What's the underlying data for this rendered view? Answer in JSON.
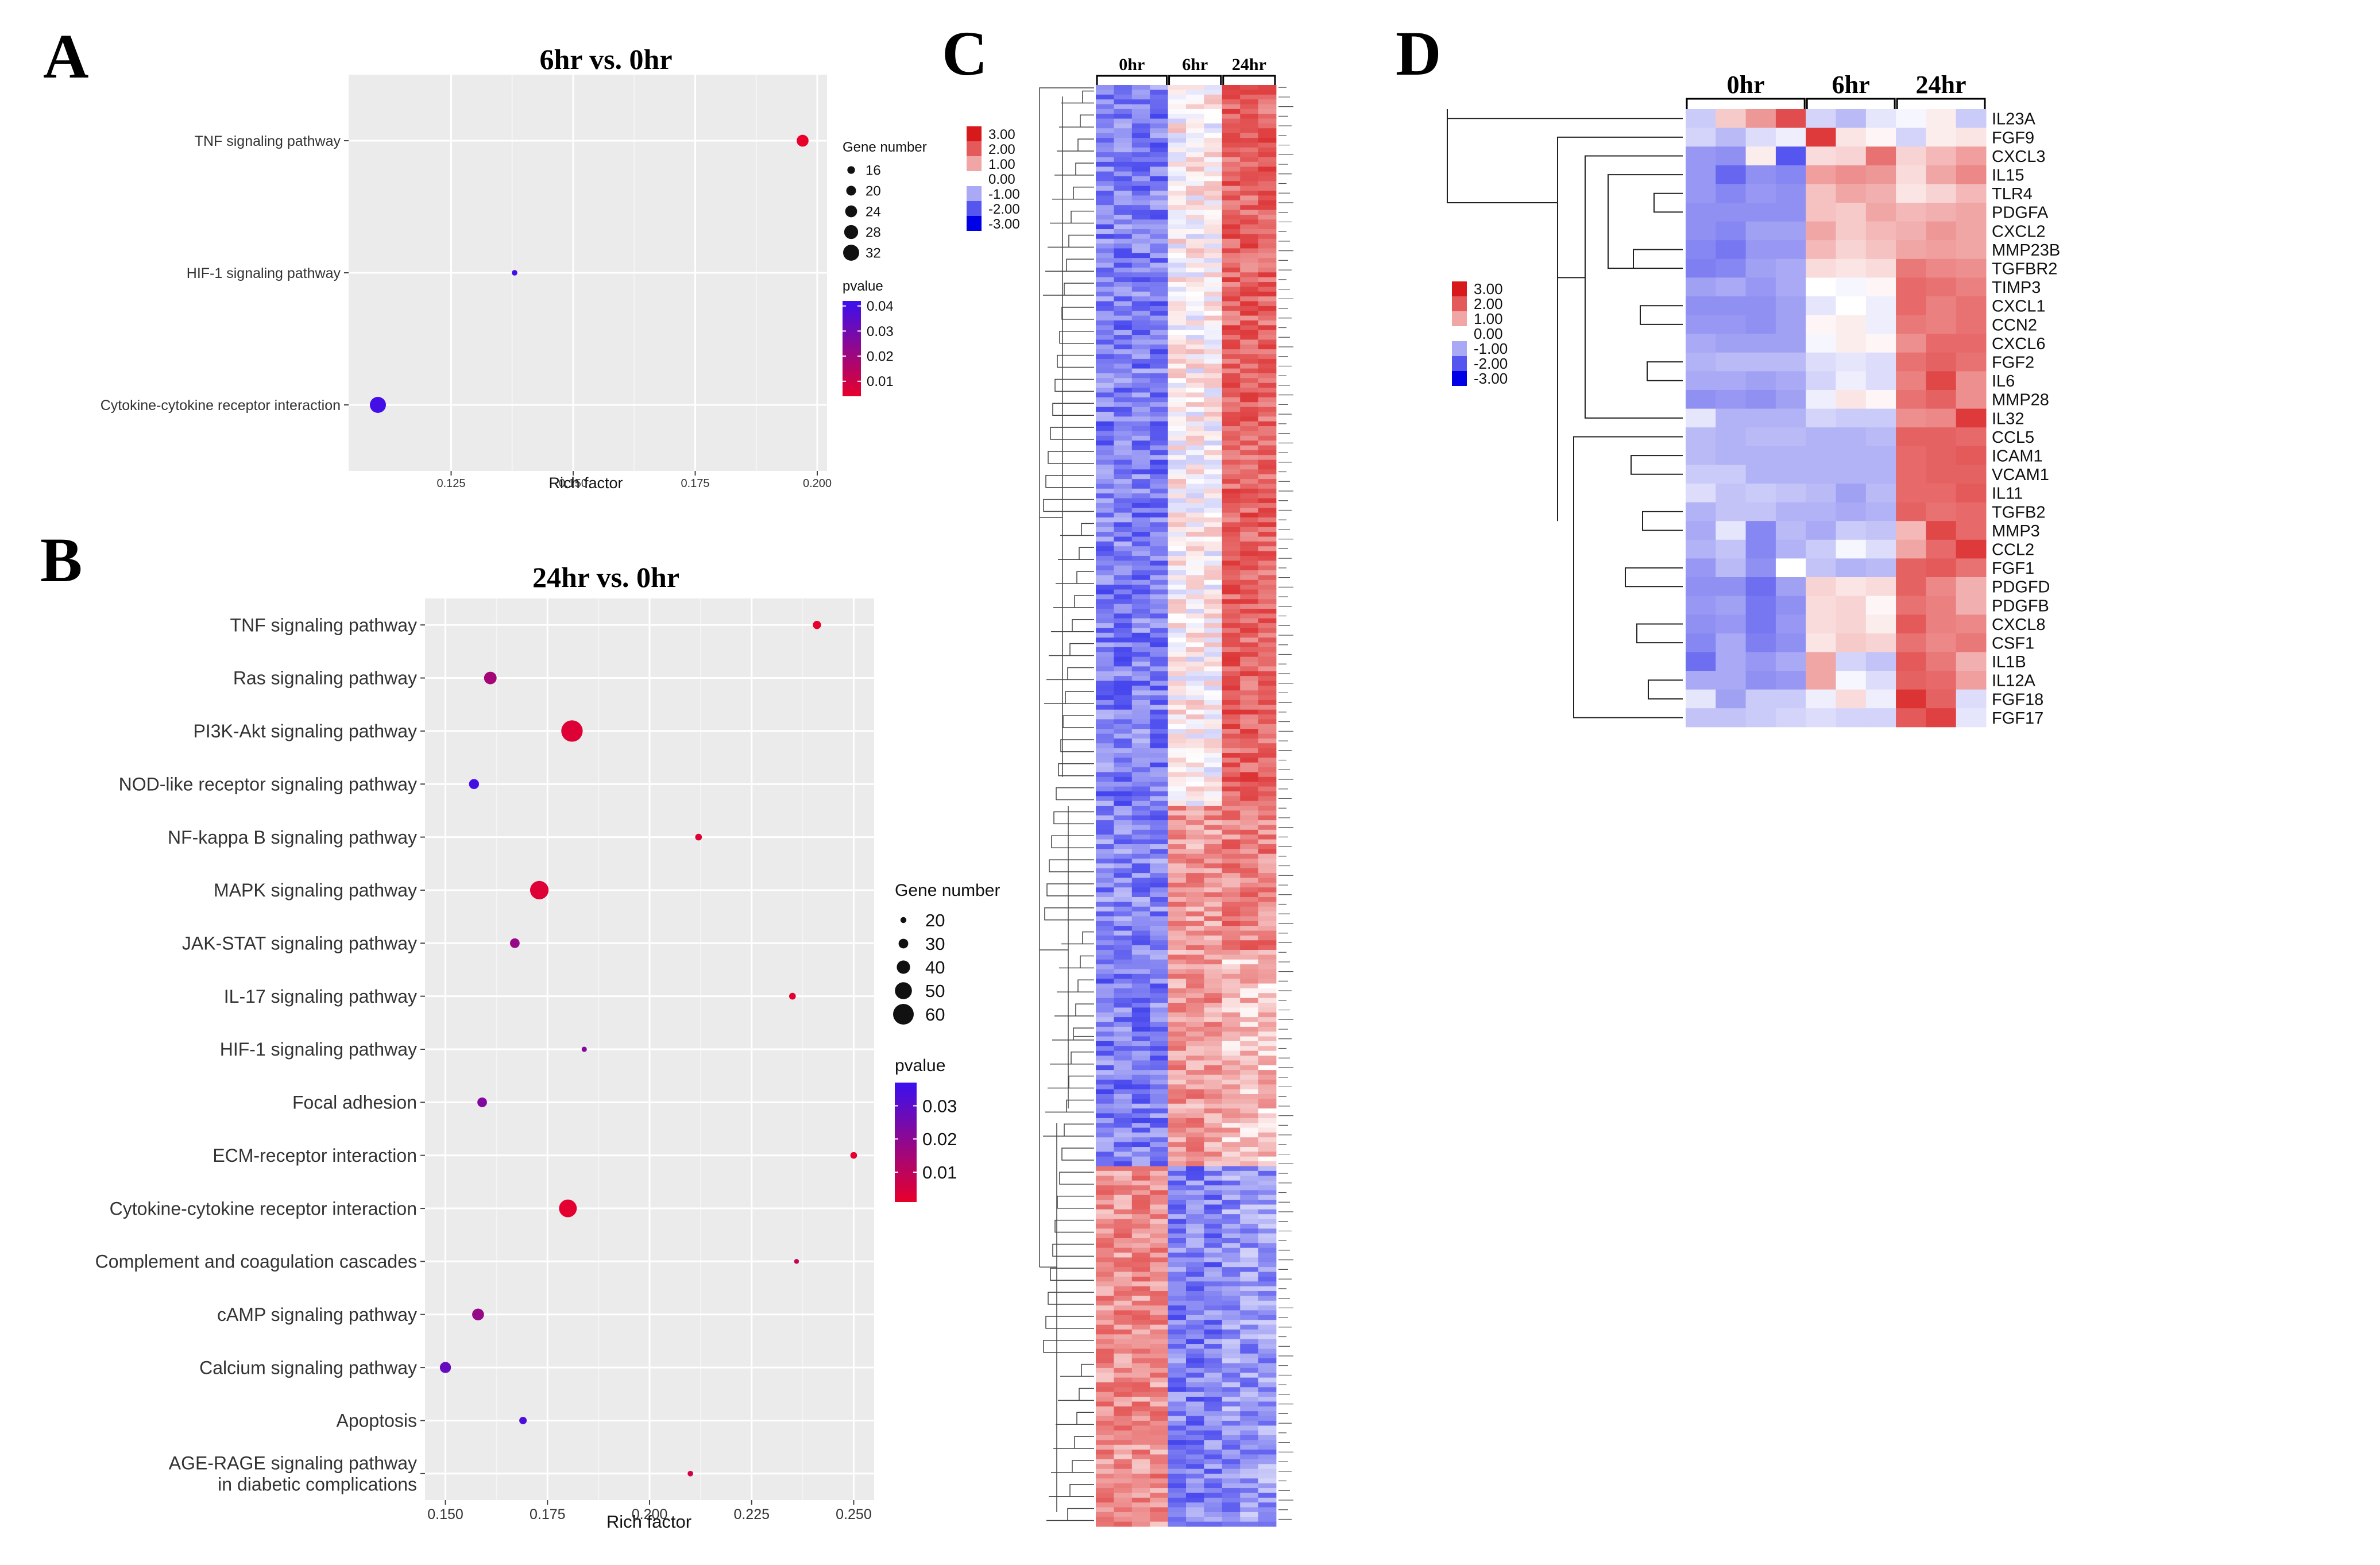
{
  "panels": {
    "A": {
      "letter": "A",
      "title": "6hr vs. 0hr",
      "xlabel": "Rich factor",
      "size_legend_title": "Gene number",
      "color_legend_title": "pvalue"
    },
    "B": {
      "letter": "B",
      "title": "24hr vs. 0hr",
      "xlabel": "Rich factor",
      "size_legend_title": "Gene number",
      "color_legend_title": "pvalue"
    },
    "C": {
      "letter": "C"
    },
    "D": {
      "letter": "D"
    }
  },
  "chart_data": [
    {
      "panel": "A",
      "type": "scatter",
      "title": "6hr vs. 0hr",
      "xlabel": "Rich factor",
      "ylabel": "",
      "xlim": [
        0.104,
        0.202
      ],
      "xticks": [
        0.125,
        0.15,
        0.175,
        0.2
      ],
      "xtick_labels": [
        "0.125",
        "0.150",
        "0.175",
        "0.200"
      ],
      "grid": true,
      "legend_position": "right",
      "categories": [
        "TNF signaling pathway",
        "HIF-1 signaling pathway",
        "Cytokine-cytokine receptor interaction"
      ],
      "points": [
        {
          "pathway": "TNF signaling pathway",
          "rich_factor": 0.197,
          "gene_number": 24,
          "pvalue": 0.004
        },
        {
          "pathway": "HIF-1 signaling pathway",
          "rich_factor": 0.138,
          "gene_number": 12,
          "pvalue": 0.04
        },
        {
          "pathway": "Cytokine-cytokine receptor interaction",
          "rich_factor": 0.11,
          "gene_number": 32,
          "pvalue": 0.04
        }
      ],
      "size_legend": {
        "title": "Gene number",
        "values": [
          16,
          20,
          24,
          28,
          32
        ]
      },
      "color_legend": {
        "title": "pvalue",
        "ticks": [
          0.04,
          0.03,
          0.02,
          0.01
        ],
        "tick_labels": [
          "0.04",
          "0.03",
          "0.02",
          "0.01"
        ],
        "range": [
          0.004,
          0.042
        ],
        "low_color": "#e8002a",
        "high_color": "#3a10f0"
      }
    },
    {
      "panel": "B",
      "type": "scatter",
      "title": "24hr vs. 0hr",
      "xlabel": "Rich factor",
      "ylabel": "",
      "xlim": [
        0.145,
        0.255
      ],
      "xticks": [
        0.15,
        0.175,
        0.2,
        0.225,
        0.25
      ],
      "xtick_labels": [
        "0.150",
        "0.175",
        "0.200",
        "0.225",
        "0.250"
      ],
      "grid": true,
      "legend_position": "right",
      "categories": [
        "TNF signaling pathway",
        "Ras signaling pathway",
        "PI3K-Akt signaling pathway",
        "NOD-like receptor signaling pathway",
        "NF-kappa B signaling pathway",
        "MAPK signaling pathway",
        "JAK-STAT signaling pathway",
        "IL-17 signaling pathway",
        "HIF-1 signaling pathway",
        "Focal adhesion",
        "ECM-receptor interaction",
        "Cytokine-cytokine receptor interaction",
        "Complement and coagulation cascades",
        "cAMP signaling pathway",
        "Calcium signaling pathway",
        "Apoptosis",
        "AGE-RAGE signaling pathway\nin diabetic complications"
      ],
      "points": [
        {
          "pathway": "TNF signaling pathway",
          "rich_factor": 0.241,
          "gene_number": 26,
          "pvalue": 0.001
        },
        {
          "pathway": "Ras signaling pathway",
          "rich_factor": 0.161,
          "gene_number": 38,
          "pvalue": 0.015
        },
        {
          "pathway": "PI3K-Akt signaling pathway",
          "rich_factor": 0.181,
          "gene_number": 62,
          "pvalue": 0.003
        },
        {
          "pathway": "NOD-like receptor signaling pathway",
          "rich_factor": 0.157,
          "gene_number": 31,
          "pvalue": 0.035
        },
        {
          "pathway": "NF-kappa B signaling pathway",
          "rich_factor": 0.212,
          "gene_number": 22,
          "pvalue": 0.003
        },
        {
          "pathway": "MAPK signaling pathway",
          "rich_factor": 0.173,
          "gene_number": 54,
          "pvalue": 0.003
        },
        {
          "pathway": "JAK-STAT signaling pathway",
          "rich_factor": 0.167,
          "gene_number": 30,
          "pvalue": 0.018
        },
        {
          "pathway": "IL-17 signaling pathway",
          "rich_factor": 0.235,
          "gene_number": 22,
          "pvalue": 0.002
        },
        {
          "pathway": "HIF-1 signaling pathway",
          "rich_factor": 0.184,
          "gene_number": 18,
          "pvalue": 0.022
        },
        {
          "pathway": "Focal adhesion",
          "rich_factor": 0.159,
          "gene_number": 30,
          "pvalue": 0.022
        },
        {
          "pathway": "ECM-receptor interaction",
          "rich_factor": 0.25,
          "gene_number": 22,
          "pvalue": 0.002
        },
        {
          "pathway": "Cytokine-cytokine receptor interaction",
          "rich_factor": 0.18,
          "gene_number": 52,
          "pvalue": 0.002
        },
        {
          "pathway": "Complement and coagulation cascades",
          "rich_factor": 0.236,
          "gene_number": 17,
          "pvalue": 0.008
        },
        {
          "pathway": "cAMP signaling pathway",
          "rich_factor": 0.158,
          "gene_number": 36,
          "pvalue": 0.018
        },
        {
          "pathway": "Calcium signaling pathway",
          "rich_factor": 0.15,
          "gene_number": 34,
          "pvalue": 0.028
        },
        {
          "pathway": "Apoptosis",
          "rich_factor": 0.169,
          "gene_number": 24,
          "pvalue": 0.033
        },
        {
          "pathway": "AGE-RAGE signaling pathway\nin diabetic complications",
          "rich_factor": 0.21,
          "gene_number": 19,
          "pvalue": 0.006
        }
      ],
      "size_legend": {
        "title": "Gene number",
        "values": [
          20,
          30,
          40,
          50,
          60
        ]
      },
      "color_legend": {
        "title": "pvalue",
        "ticks": [
          0.03,
          0.02,
          0.01
        ],
        "tick_labels": [
          "0.03",
          "0.02",
          "0.01"
        ],
        "range": [
          0.001,
          0.037
        ],
        "low_color": "#e8002a",
        "high_color": "#3a10f0"
      }
    },
    {
      "panel": "C",
      "type": "heatmap",
      "groups": [
        {
          "label": "0hr",
          "columns": 4
        },
        {
          "label": "6hr",
          "columns": 3
        },
        {
          "label": "24hr",
          "columns": 3
        }
      ],
      "row_count": 300,
      "row_labels_legible": false,
      "row_blocks": [
        {
          "until_fraction": 0.5,
          "pattern": [
            -1.5,
            -1.5,
            -1.5,
            -1.5,
            0.1,
            0.1,
            0.1,
            1.9,
            1.9,
            1.9
          ]
        },
        {
          "until_fraction": 0.6,
          "pattern": [
            -1.4,
            -1.4,
            -1.4,
            -1.4,
            1.2,
            1.2,
            1.2,
            1.5,
            1.5,
            1.5
          ]
        },
        {
          "until_fraction": 0.75,
          "pattern": [
            -1.5,
            -1.5,
            -1.5,
            -1.5,
            1.2,
            1.2,
            1.2,
            0.7,
            0.7,
            0.7
          ]
        },
        {
          "until_fraction": 1.0,
          "pattern": [
            1.3,
            1.3,
            1.3,
            1.3,
            -1.5,
            -1.5,
            -1.5,
            -1.2,
            -1.2,
            -1.2
          ]
        }
      ],
      "color_scale": {
        "labels": [
          "3.00",
          "2.00",
          "1.00",
          "0.00",
          "-1.00",
          "-2.00",
          "-3.00"
        ],
        "colors": [
          "#d7191c",
          "#e45a5a",
          "#f1a6a6",
          "#ffffff",
          "#a9a9f5",
          "#5555ef",
          "#0000e6"
        ]
      }
    },
    {
      "panel": "D",
      "type": "heatmap",
      "groups": [
        {
          "label": "0hr",
          "columns": 4
        },
        {
          "label": "6hr",
          "columns": 3
        },
        {
          "label": "24hr",
          "columns": 3
        }
      ],
      "genes": [
        "IL23A",
        "FGF9",
        "CXCL3",
        "IL15",
        "TLR4",
        "PDGFA",
        "CXCL2",
        "MMP23B",
        "TGFBR2",
        "TIMP3",
        "CXCL1",
        "CCN2",
        "CXCL6",
        "FGF2",
        "IL6",
        "MMP28",
        "IL32",
        "CCL5",
        "ICAM1",
        "VCAM1",
        "IL11",
        "TGFB2",
        "MMP3",
        "CCL2",
        "FGF1",
        "PDGFD",
        "PDGFB",
        "CXCL8",
        "CSF1",
        "IL1B",
        "IL12A",
        "FGF18",
        "FGF17"
      ],
      "values": [
        [
          -0.6,
          0.6,
          1.2,
          2.2,
          -0.5,
          -0.8,
          -0.3,
          -0.1,
          0.2,
          -0.6
        ],
        [
          -0.5,
          -0.8,
          -0.4,
          -0.2,
          2.5,
          0.3,
          0.1,
          -0.5,
          0.2,
          0.3
        ],
        [
          -1.2,
          -1.3,
          0.2,
          -2.0,
          0.4,
          0.5,
          1.7,
          0.5,
          0.8,
          1.1
        ],
        [
          -1.2,
          -1.8,
          -1.3,
          -1.4,
          1.1,
          1.3,
          1.2,
          0.4,
          1.0,
          1.4
        ],
        [
          -1.2,
          -1.4,
          -1.2,
          -1.3,
          0.7,
          1.0,
          0.9,
          0.3,
          0.5,
          0.8
        ],
        [
          -1.3,
          -1.3,
          -1.3,
          -1.3,
          0.7,
          0.6,
          1.0,
          0.8,
          0.9,
          1.0
        ],
        [
          -1.3,
          -1.4,
          -1.1,
          -1.1,
          1.0,
          0.6,
          0.8,
          0.9,
          1.2,
          1.0
        ],
        [
          -1.4,
          -1.6,
          -1.2,
          -1.2,
          0.8,
          0.5,
          0.7,
          1.0,
          1.1,
          1.0
        ],
        [
          -1.5,
          -1.4,
          -1.1,
          -1.0,
          0.4,
          0.3,
          0.4,
          1.6,
          1.4,
          1.3
        ],
        [
          -1.1,
          -1.0,
          -1.2,
          -1.0,
          0.0,
          -0.1,
          0.1,
          1.8,
          1.7,
          1.5
        ],
        [
          -1.3,
          -1.3,
          -1.3,
          -1.1,
          -0.3,
          0.0,
          -0.2,
          1.8,
          1.5,
          1.7
        ],
        [
          -1.2,
          -1.2,
          -1.3,
          -1.1,
          0.1,
          0.2,
          -0.2,
          1.6,
          1.5,
          1.7
        ],
        [
          -1.0,
          -1.1,
          -1.1,
          -1.1,
          -0.1,
          0.2,
          0.1,
          1.3,
          1.8,
          1.8
        ],
        [
          -0.9,
          -0.8,
          -0.8,
          -0.8,
          -0.4,
          -0.3,
          -0.4,
          1.7,
          1.9,
          1.7
        ],
        [
          -1.0,
          -1.0,
          -1.1,
          -1.0,
          -0.5,
          -0.2,
          -0.4,
          1.5,
          2.3,
          1.3
        ],
        [
          -1.3,
          -1.2,
          -1.3,
          -1.1,
          -0.2,
          0.3,
          0.1,
          1.7,
          1.9,
          1.3
        ],
        [
          -0.3,
          -0.9,
          -0.9,
          -0.9,
          -0.5,
          -0.6,
          -0.6,
          1.3,
          1.4,
          2.5
        ],
        [
          -0.8,
          -0.9,
          -0.8,
          -0.8,
          -0.9,
          -0.9,
          -0.8,
          1.9,
          1.9,
          1.8
        ],
        [
          -0.8,
          -0.9,
          -0.9,
          -0.9,
          -0.9,
          -0.9,
          -0.9,
          1.8,
          1.9,
          2.0
        ],
        [
          -0.6,
          -0.6,
          -0.9,
          -0.9,
          -0.9,
          -0.9,
          -0.9,
          1.8,
          1.9,
          1.9
        ],
        [
          -0.4,
          -0.7,
          -0.6,
          -0.7,
          -0.8,
          -1.1,
          -0.8,
          1.8,
          1.8,
          2.0
        ],
        [
          -0.9,
          -0.7,
          -0.7,
          -0.9,
          -0.9,
          -1.0,
          -0.9,
          1.9,
          1.7,
          1.8
        ],
        [
          -1.0,
          -0.3,
          -1.4,
          -0.8,
          -1.0,
          -0.6,
          -0.7,
          0.8,
          2.3,
          1.8
        ],
        [
          -0.9,
          -0.7,
          -1.4,
          -0.9,
          -0.6,
          -0.1,
          -0.4,
          1.0,
          1.8,
          2.5
        ],
        [
          -1.2,
          -0.8,
          -1.3,
          0.0,
          -0.7,
          -0.9,
          -0.8,
          1.9,
          2.0,
          1.7
        ],
        [
          -1.3,
          -1.3,
          -1.7,
          -1.1,
          0.5,
          0.3,
          0.4,
          1.9,
          1.4,
          0.9
        ],
        [
          -1.2,
          -1.1,
          -1.6,
          -1.3,
          0.4,
          0.5,
          0.1,
          1.7,
          1.5,
          0.9
        ],
        [
          -1.3,
          -1.2,
          -1.6,
          -1.2,
          0.4,
          0.5,
          0.2,
          2.0,
          1.5,
          1.4
        ],
        [
          -1.4,
          -1.0,
          -1.5,
          -1.3,
          0.3,
          0.6,
          0.5,
          1.7,
          1.4,
          1.6
        ],
        [
          -1.7,
          -1.0,
          -1.2,
          -1.0,
          1.0,
          -0.5,
          -0.7,
          2.0,
          1.6,
          0.9
        ],
        [
          -1.0,
          -1.0,
          -1.3,
          -1.2,
          1.0,
          -0.1,
          -0.4,
          1.9,
          1.8,
          1.1
        ],
        [
          -0.3,
          -1.1,
          -0.6,
          -0.6,
          -0.2,
          0.4,
          -0.2,
          2.6,
          1.9,
          -0.4
        ],
        [
          -0.7,
          -0.7,
          -0.6,
          -0.5,
          -0.4,
          -0.5,
          -0.5,
          2.0,
          2.4,
          -0.3
        ]
      ],
      "color_scale": {
        "labels": [
          "3.00",
          "2.00",
          "1.00",
          "0.00",
          "-1.00",
          "-2.00",
          "-3.00"
        ],
        "colors": [
          "#d7191c",
          "#e45a5a",
          "#f1a6a6",
          "#ffffff",
          "#a9a9f5",
          "#5555ef",
          "#0000e6"
        ]
      }
    }
  ]
}
